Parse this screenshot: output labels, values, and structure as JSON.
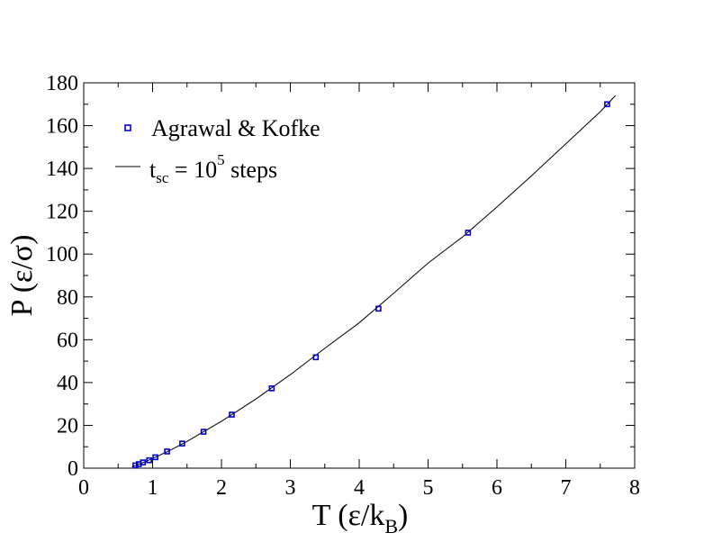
{
  "chart_data": {
    "type": "scatter",
    "xlabel": "T (ε/k",
    "xlabel_sub": "B",
    "xlabel_tail": ")",
    "ylabel": "P (ε/σ)",
    "xlim": [
      0,
      8
    ],
    "ylim": [
      0,
      180
    ],
    "xticks": [
      0,
      1,
      2,
      3,
      4,
      5,
      6,
      7,
      8
    ],
    "yticks": [
      0,
      20,
      40,
      60,
      80,
      100,
      120,
      140,
      160,
      180
    ],
    "minor_ticks": true,
    "grid": false,
    "legend_position": "top-left",
    "series": [
      {
        "name": "Agrawal & Kofke",
        "kind": "points",
        "marker": "open-square",
        "color": "#0000cc",
        "x": [
          0.75,
          0.8,
          0.86,
          0.95,
          1.04,
          1.21,
          1.43,
          1.74,
          2.15,
          2.73,
          3.37,
          4.28,
          5.58,
          7.6
        ],
        "y": [
          1.3,
          1.9,
          2.7,
          3.7,
          5.1,
          7.8,
          11.5,
          17.0,
          25.0,
          37.3,
          51.8,
          74.5,
          110.0,
          170.0
        ]
      },
      {
        "name_prefix": "t",
        "name_sub": "sc",
        "name_mid": " = 10",
        "name_sup": "5",
        "name_suffix": " steps",
        "kind": "line",
        "color": "#000000",
        "x": [
          0.7,
          0.8,
          1.0,
          1.25,
          1.5,
          1.75,
          2.0,
          2.5,
          3.0,
          3.5,
          4.0,
          4.5,
          5.0,
          5.5,
          6.0,
          6.5,
          7.0,
          7.5,
          7.72
        ],
        "y": [
          0.6,
          1.8,
          4.5,
          8.3,
          12.5,
          17.2,
          21.9,
          32.3,
          43.7,
          56.0,
          67.9,
          81.7,
          95.8,
          108.0,
          122.0,
          136.5,
          151.5,
          166.5,
          174.0
        ]
      }
    ]
  }
}
